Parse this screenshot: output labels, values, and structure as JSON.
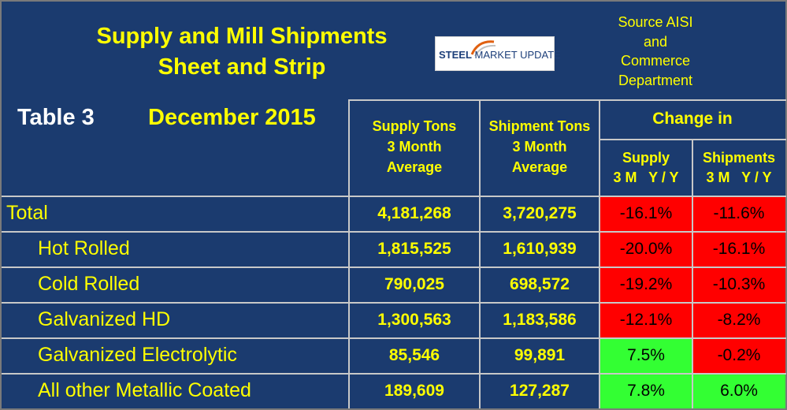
{
  "title_line1": "Supply and Mill Shipments",
  "title_line2": "Sheet and Strip",
  "logo": {
    "word1": "STEEL",
    "word2": "MARKET UPDATE"
  },
  "source": [
    "Source AISI",
    "and",
    "Commerce",
    "Department"
  ],
  "table_label": "Table 3",
  "date_label": "December 2015",
  "headers": {
    "supply": [
      "Supply Tons",
      "3 Month",
      "Average"
    ],
    "shipment": [
      "Shipment Tons",
      "3 Month",
      "Average"
    ],
    "change_in": "Change in",
    "supply_change": [
      "Supply",
      "3 M   Y / Y"
    ],
    "shipments_change": [
      "Shipments",
      "3 M   Y / Y"
    ]
  },
  "colors": {
    "background": "#1b3b6f",
    "text": "#ffff00",
    "negative": "#ff0000",
    "positive": "#33ff33",
    "grid": "#c8c8c8"
  },
  "rows": [
    {
      "label": "Total",
      "supply": "4,181,268",
      "shipment": "3,720,275",
      "supply_change": "-16.1%",
      "shipment_change": "-11.6%"
    },
    {
      "label": "Hot Rolled",
      "supply": "1,815,525",
      "shipment": "1,610,939",
      "supply_change": "-20.0%",
      "shipment_change": "-16.1%"
    },
    {
      "label": "Cold Rolled",
      "supply": "790,025",
      "shipment": "698,572",
      "supply_change": "-19.2%",
      "shipment_change": "-10.3%"
    },
    {
      "label": "Galvanized HD",
      "supply": "1,300,563",
      "shipment": "1,183,586",
      "supply_change": "-12.1%",
      "shipment_change": "-8.2%"
    },
    {
      "label": "Galvanized Electrolytic",
      "supply": "85,546",
      "shipment": "99,891",
      "supply_change": "7.5%",
      "shipment_change": "-0.2%"
    },
    {
      "label": "All other Metallic Coated",
      "supply": "189,609",
      "shipment": "127,287",
      "supply_change": "7.8%",
      "shipment_change": "6.0%"
    }
  ]
}
